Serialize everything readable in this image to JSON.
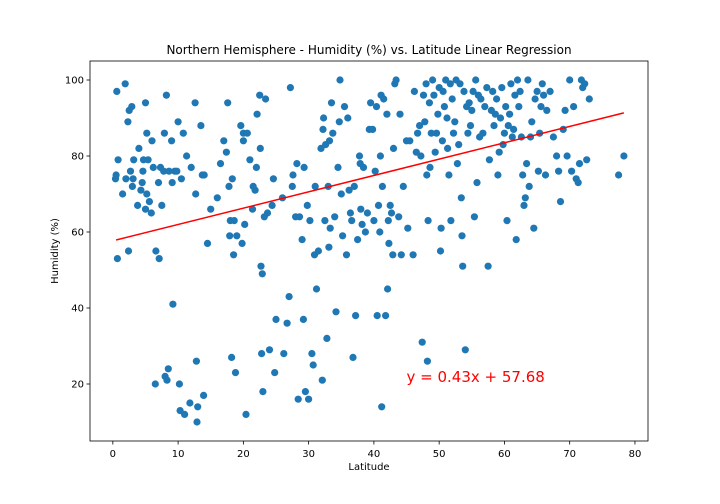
{
  "chart_data": {
    "type": "scatter",
    "title": "Northern Hemisphere - Humidity (%) vs. Latitude Linear Regression",
    "xlabel": "Latitude",
    "ylabel": "Humidity (%)",
    "xlim": [
      -3.5,
      82
    ],
    "ylim": [
      5,
      105
    ],
    "x_ticks": [
      0,
      10,
      20,
      30,
      40,
      50,
      60,
      70,
      80
    ],
    "y_ticks": [
      20,
      40,
      60,
      80,
      100
    ],
    "grid": false,
    "legend": "none",
    "colors": {
      "points": "#1f77b4",
      "regression": "#ff0000",
      "equation": "#ff0000"
    },
    "regression": {
      "slope": 0.43,
      "intercept": 57.68,
      "x_range": [
        0.5,
        78.3
      ],
      "equation_label": "y = 0.43x + 57.68",
      "label_position": {
        "x": 45,
        "y": 20.5
      }
    },
    "series": [
      {
        "points": [
          [
            0.4,
            74
          ],
          [
            0.5,
            75
          ],
          [
            0.6,
            97
          ],
          [
            0.7,
            53
          ],
          [
            0.8,
            79
          ],
          [
            1.5,
            70
          ],
          [
            1.9,
            99
          ],
          [
            2.0,
            74
          ],
          [
            2.3,
            89
          ],
          [
            2.4,
            55
          ],
          [
            2.5,
            92
          ],
          [
            2.7,
            76
          ],
          [
            2.9,
            93
          ],
          [
            3.0,
            72
          ],
          [
            3.1,
            74
          ],
          [
            3.2,
            79
          ],
          [
            3.8,
            67
          ],
          [
            4.0,
            82
          ],
          [
            4.3,
            71
          ],
          [
            4.5,
            73
          ],
          [
            4.6,
            76
          ],
          [
            4.7,
            79
          ],
          [
            5.0,
            94
          ],
          [
            5.0,
            66
          ],
          [
            5.2,
            86
          ],
          [
            5.2,
            70
          ],
          [
            5.4,
            79
          ],
          [
            5.6,
            68
          ],
          [
            5.9,
            65
          ],
          [
            6.0,
            84
          ],
          [
            6.2,
            77
          ],
          [
            6.5,
            20
          ],
          [
            6.6,
            55
          ],
          [
            7.0,
            73
          ],
          [
            7.1,
            53
          ],
          [
            7.3,
            77
          ],
          [
            7.5,
            67
          ],
          [
            7.8,
            76
          ],
          [
            7.9,
            86
          ],
          [
            8.0,
            22
          ],
          [
            8.2,
            96
          ],
          [
            8.3,
            21
          ],
          [
            8.5,
            24
          ],
          [
            8.6,
            76
          ],
          [
            9.0,
            84
          ],
          [
            9.1,
            73
          ],
          [
            9.2,
            41
          ],
          [
            9.5,
            76
          ],
          [
            9.8,
            76
          ],
          [
            10.0,
            89
          ],
          [
            10.2,
            20
          ],
          [
            10.3,
            13
          ],
          [
            10.5,
            74
          ],
          [
            10.8,
            86
          ],
          [
            11.0,
            12
          ],
          [
            11.3,
            80
          ],
          [
            11.8,
            15
          ],
          [
            12.0,
            77
          ],
          [
            12.6,
            94
          ],
          [
            12.7,
            70
          ],
          [
            12.8,
            26
          ],
          [
            12.9,
            10
          ],
          [
            13.0,
            14
          ],
          [
            13.5,
            88
          ],
          [
            13.7,
            75
          ],
          [
            13.9,
            17
          ],
          [
            14.0,
            75
          ],
          [
            14.5,
            57
          ],
          [
            15.0,
            66
          ],
          [
            16.0,
            69
          ],
          [
            16.5,
            78
          ],
          [
            17.0,
            84
          ],
          [
            17.4,
            81
          ],
          [
            17.6,
            94
          ],
          [
            17.8,
            72
          ],
          [
            17.9,
            59
          ],
          [
            18.0,
            63
          ],
          [
            18.2,
            27
          ],
          [
            18.3,
            74
          ],
          [
            18.5,
            54
          ],
          [
            18.6,
            63
          ],
          [
            18.8,
            23
          ],
          [
            19.0,
            59
          ],
          [
            19.6,
            88
          ],
          [
            19.8,
            57
          ],
          [
            20.0,
            86
          ],
          [
            20.0,
            84
          ],
          [
            20.2,
            62
          ],
          [
            20.4,
            12
          ],
          [
            20.6,
            86
          ],
          [
            21.0,
            79
          ],
          [
            21.4,
            66
          ],
          [
            21.5,
            72
          ],
          [
            21.8,
            71
          ],
          [
            22.0,
            77
          ],
          [
            22.1,
            91
          ],
          [
            22.5,
            96
          ],
          [
            22.6,
            82
          ],
          [
            22.7,
            51
          ],
          [
            22.8,
            28
          ],
          [
            22.9,
            49
          ],
          [
            23.0,
            18
          ],
          [
            23.2,
            64
          ],
          [
            23.4,
            95
          ],
          [
            23.7,
            65
          ],
          [
            24.0,
            29
          ],
          [
            24.4,
            67
          ],
          [
            24.6,
            74
          ],
          [
            24.8,
            23
          ],
          [
            25.0,
            37
          ],
          [
            26.0,
            69
          ],
          [
            26.2,
            28
          ],
          [
            26.7,
            36
          ],
          [
            27.0,
            43
          ],
          [
            27.2,
            98
          ],
          [
            27.5,
            72
          ],
          [
            27.6,
            75
          ],
          [
            28.0,
            64
          ],
          [
            28.2,
            78
          ],
          [
            28.4,
            16
          ],
          [
            28.6,
            64
          ],
          [
            29.0,
            58
          ],
          [
            29.2,
            37
          ],
          [
            29.3,
            77
          ],
          [
            29.5,
            18
          ],
          [
            29.8,
            67
          ],
          [
            30.0,
            16
          ],
          [
            30.2,
            63
          ],
          [
            30.5,
            28
          ],
          [
            30.7,
            25
          ],
          [
            30.9,
            54
          ],
          [
            31.0,
            72
          ],
          [
            31.2,
            45
          ],
          [
            31.5,
            55
          ],
          [
            31.9,
            82
          ],
          [
            32.1,
            21
          ],
          [
            32.2,
            87
          ],
          [
            32.3,
            90
          ],
          [
            32.5,
            63
          ],
          [
            32.6,
            83
          ],
          [
            32.8,
            32
          ],
          [
            33.0,
            72
          ],
          [
            33.1,
            56
          ],
          [
            33.2,
            84
          ],
          [
            33.3,
            61
          ],
          [
            33.5,
            94
          ],
          [
            33.7,
            86
          ],
          [
            34.0,
            64
          ],
          [
            34.2,
            39
          ],
          [
            34.5,
            77
          ],
          [
            34.7,
            89
          ],
          [
            34.8,
            100
          ],
          [
            35.0,
            70
          ],
          [
            35.2,
            59
          ],
          [
            35.5,
            93
          ],
          [
            35.8,
            54
          ],
          [
            36.0,
            90
          ],
          [
            36.2,
            71
          ],
          [
            36.4,
            65
          ],
          [
            36.6,
            63
          ],
          [
            36.8,
            27
          ],
          [
            37.0,
            72
          ],
          [
            37.2,
            38
          ],
          [
            37.5,
            58
          ],
          [
            37.8,
            80
          ],
          [
            37.9,
            78
          ],
          [
            38.0,
            66
          ],
          [
            38.2,
            62
          ],
          [
            38.4,
            77
          ],
          [
            38.7,
            60
          ],
          [
            39.0,
            65
          ],
          [
            39.3,
            87
          ],
          [
            39.5,
            94
          ],
          [
            39.8,
            87
          ],
          [
            40.0,
            63
          ],
          [
            40.2,
            76
          ],
          [
            40.4,
            93
          ],
          [
            40.5,
            38
          ],
          [
            40.7,
            67
          ],
          [
            40.9,
            60
          ],
          [
            41.0,
            80
          ],
          [
            41.1,
            96
          ],
          [
            41.2,
            14
          ],
          [
            41.3,
            72
          ],
          [
            41.5,
            95
          ],
          [
            41.8,
            38
          ],
          [
            42.0,
            91
          ],
          [
            42.1,
            45
          ],
          [
            42.2,
            63
          ],
          [
            42.3,
            57
          ],
          [
            42.5,
            67
          ],
          [
            42.7,
            65
          ],
          [
            42.9,
            54
          ],
          [
            43.0,
            82
          ],
          [
            43.2,
            99
          ],
          [
            43.4,
            100
          ],
          [
            43.8,
            64
          ],
          [
            44.0,
            91
          ],
          [
            44.2,
            54
          ],
          [
            44.5,
            72
          ],
          [
            45.0,
            84
          ],
          [
            45.2,
            61
          ],
          [
            45.5,
            84
          ],
          [
            46.0,
            54
          ],
          [
            46.2,
            97
          ],
          [
            46.5,
            81
          ],
          [
            46.7,
            86
          ],
          [
            47.0,
            88
          ],
          [
            47.2,
            80
          ],
          [
            47.4,
            31
          ],
          [
            47.6,
            96
          ],
          [
            47.8,
            89
          ],
          [
            48.0,
            99
          ],
          [
            48.1,
            75
          ],
          [
            48.2,
            26
          ],
          [
            48.3,
            63
          ],
          [
            48.5,
            94
          ],
          [
            48.6,
            77
          ],
          [
            48.8,
            86
          ],
          [
            49.0,
            100
          ],
          [
            49.2,
            96
          ],
          [
            49.4,
            81
          ],
          [
            49.6,
            86
          ],
          [
            49.8,
            91
          ],
          [
            50.0,
            98
          ],
          [
            50.2,
            55
          ],
          [
            50.3,
            61
          ],
          [
            50.5,
            84
          ],
          [
            50.6,
            97
          ],
          [
            50.8,
            93
          ],
          [
            51.0,
            100
          ],
          [
            51.2,
            90
          ],
          [
            51.3,
            82
          ],
          [
            51.5,
            75
          ],
          [
            51.7,
            99
          ],
          [
            51.8,
            63
          ],
          [
            52.0,
            95
          ],
          [
            52.2,
            86
          ],
          [
            52.4,
            89
          ],
          [
            52.6,
            100
          ],
          [
            52.8,
            78
          ],
          [
            53.0,
            83
          ],
          [
            53.2,
            99
          ],
          [
            53.4,
            69
          ],
          [
            53.5,
            59
          ],
          [
            53.6,
            51
          ],
          [
            53.8,
            97
          ],
          [
            54.0,
            29
          ],
          [
            54.2,
            93
          ],
          [
            54.4,
            86
          ],
          [
            54.6,
            94
          ],
          [
            54.8,
            88
          ],
          [
            55.0,
            92
          ],
          [
            55.2,
            97
          ],
          [
            55.4,
            64
          ],
          [
            55.6,
            100
          ],
          [
            55.8,
            73
          ],
          [
            56.0,
            96
          ],
          [
            56.2,
            85
          ],
          [
            56.4,
            95
          ],
          [
            56.7,
            86
          ],
          [
            57.0,
            93
          ],
          [
            57.3,
            98
          ],
          [
            57.5,
            51
          ],
          [
            57.7,
            79
          ],
          [
            58.0,
            92
          ],
          [
            58.2,
            97
          ],
          [
            58.4,
            88
          ],
          [
            58.6,
            91
          ],
          [
            58.8,
            95
          ],
          [
            59.0,
            75
          ],
          [
            59.2,
            81
          ],
          [
            59.4,
            90
          ],
          [
            59.6,
            98
          ],
          [
            59.8,
            83
          ],
          [
            60.0,
            86
          ],
          [
            60.2,
            93
          ],
          [
            60.4,
            63
          ],
          [
            60.6,
            88
          ],
          [
            60.8,
            91
          ],
          [
            61.0,
            99
          ],
          [
            61.2,
            85
          ],
          [
            61.4,
            87
          ],
          [
            61.6,
            96
          ],
          [
            61.8,
            58
          ],
          [
            62.0,
            100
          ],
          [
            62.2,
            93
          ],
          [
            62.4,
            97
          ],
          [
            62.6,
            85
          ],
          [
            62.8,
            75
          ],
          [
            63.0,
            67
          ],
          [
            63.2,
            69
          ],
          [
            63.4,
            78
          ],
          [
            63.6,
            100
          ],
          [
            63.8,
            72
          ],
          [
            64.0,
            85
          ],
          [
            64.2,
            89
          ],
          [
            64.5,
            61
          ],
          [
            64.7,
            95
          ],
          [
            65.0,
            97
          ],
          [
            65.2,
            76
          ],
          [
            65.4,
            86
          ],
          [
            65.6,
            93
          ],
          [
            65.8,
            99
          ],
          [
            66.0,
            96
          ],
          [
            66.3,
            75
          ],
          [
            66.5,
            92
          ],
          [
            67.0,
            97
          ],
          [
            67.5,
            85
          ],
          [
            68.0,
            80
          ],
          [
            68.3,
            76
          ],
          [
            68.6,
            68
          ],
          [
            69.0,
            87
          ],
          [
            69.3,
            92
          ],
          [
            69.6,
            80
          ],
          [
            70.0,
            100
          ],
          [
            70.3,
            76
          ],
          [
            70.6,
            93
          ],
          [
            71.0,
            74
          ],
          [
            71.3,
            73
          ],
          [
            71.5,
            78
          ],
          [
            71.8,
            100
          ],
          [
            72.0,
            98
          ],
          [
            72.3,
            99
          ],
          [
            72.6,
            79
          ],
          [
            73.0,
            95
          ],
          [
            77.5,
            75
          ],
          [
            78.3,
            80
          ]
        ]
      }
    ]
  }
}
